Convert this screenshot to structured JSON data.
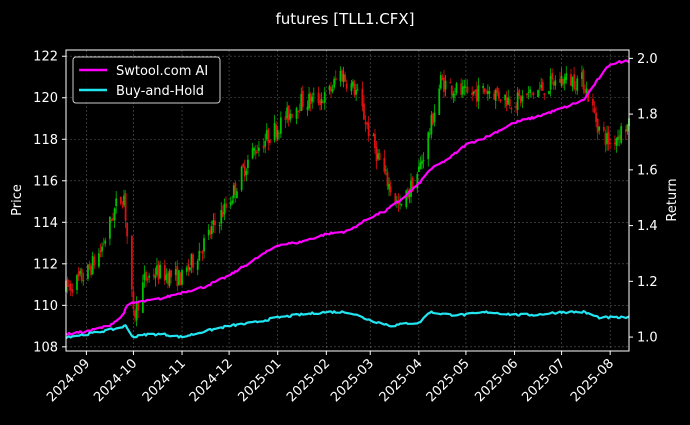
{
  "colors": {
    "background": "#000000",
    "up_candle": "#00c000",
    "down_candle": "#e01010",
    "ai_line": "#ff00ff",
    "bh_line": "#22e5f2",
    "grid": "#ffffff",
    "text": "#ffffff"
  },
  "chart_data": {
    "type": "line",
    "title": "futures [TLL1.CFX]",
    "ylabel_left": "Price",
    "ylabel_right": "Return",
    "ylim_left": [
      107.8,
      122.3
    ],
    "ylim_right": [
      0.95,
      2.03
    ],
    "yticks_left": [
      108,
      110,
      112,
      114,
      116,
      118,
      120,
      122
    ],
    "yticks_right": [
      1.0,
      1.2,
      1.4,
      1.6,
      1.8,
      2.0
    ],
    "ytick_labels_left": [
      "108",
      "110",
      "112",
      "114",
      "116",
      "118",
      "120",
      "122"
    ],
    "ytick_labels_right": [
      "1.0",
      "1.2",
      "1.4",
      "1.6",
      "1.8",
      "2.0"
    ],
    "xlim": [
      "2024-08-19",
      "2025-08-13"
    ],
    "xticks": [
      "2024-09-01",
      "2024-10-01",
      "2024-11-01",
      "2024-12-01",
      "2025-01-01",
      "2025-02-01",
      "2025-03-01",
      "2025-04-01",
      "2025-05-01",
      "2025-06-01",
      "2025-07-01",
      "2025-08-01"
    ],
    "xtick_labels": [
      "2024-09",
      "2024-10",
      "2024-11",
      "2024-12",
      "2025-01",
      "2025-02",
      "2025-03",
      "2025-04",
      "2025-05",
      "2025-06",
      "2025-07",
      "2025-08"
    ],
    "grid": true,
    "legend_position": "top-left",
    "series": [
      {
        "name": "Swtool.com AI",
        "axis": "right",
        "color": "#ff00ff",
        "points": [
          [
            "2024-08-19",
            1.01
          ],
          [
            "2024-09-01",
            1.02
          ],
          [
            "2024-09-15",
            1.04
          ],
          [
            "2024-09-23",
            1.07
          ],
          [
            "2024-09-28",
            1.12
          ],
          [
            "2024-10-10",
            1.13
          ],
          [
            "2024-10-20",
            1.14
          ],
          [
            "2024-11-01",
            1.16
          ],
          [
            "2024-11-15",
            1.18
          ],
          [
            "2024-12-01",
            1.22
          ],
          [
            "2024-12-15",
            1.27
          ],
          [
            "2025-01-01",
            1.33
          ],
          [
            "2025-01-15",
            1.34
          ],
          [
            "2025-02-01",
            1.37
          ],
          [
            "2025-02-15",
            1.38
          ],
          [
            "2025-03-01",
            1.43
          ],
          [
            "2025-03-10",
            1.45
          ],
          [
            "2025-03-20",
            1.49
          ],
          [
            "2025-04-01",
            1.55
          ],
          [
            "2025-04-08",
            1.6
          ],
          [
            "2025-04-20",
            1.64
          ],
          [
            "2025-05-01",
            1.69
          ],
          [
            "2025-05-15",
            1.72
          ],
          [
            "2025-06-01",
            1.77
          ],
          [
            "2025-06-15",
            1.79
          ],
          [
            "2025-07-01",
            1.82
          ],
          [
            "2025-07-15",
            1.85
          ],
          [
            "2025-07-25",
            1.93
          ],
          [
            "2025-08-01",
            1.98
          ],
          [
            "2025-08-10",
            1.99
          ]
        ]
      },
      {
        "name": "Buy-and-Hold",
        "axis": "right",
        "color": "#22e5f2",
        "points": [
          [
            "2024-08-19",
            1.0
          ],
          [
            "2024-09-01",
            1.01
          ],
          [
            "2024-09-20",
            1.03
          ],
          [
            "2024-09-26",
            1.04
          ],
          [
            "2024-10-01",
            1.0
          ],
          [
            "2024-10-10",
            1.01
          ],
          [
            "2024-10-20",
            1.01
          ],
          [
            "2024-11-01",
            1.0
          ],
          [
            "2024-11-15",
            1.02
          ],
          [
            "2024-12-01",
            1.04
          ],
          [
            "2024-12-15",
            1.05
          ],
          [
            "2025-01-01",
            1.07
          ],
          [
            "2025-01-15",
            1.08
          ],
          [
            "2025-02-01",
            1.09
          ],
          [
            "2025-02-15",
            1.09
          ],
          [
            "2025-03-01",
            1.06
          ],
          [
            "2025-03-15",
            1.04
          ],
          [
            "2025-03-25",
            1.05
          ],
          [
            "2025-04-01",
            1.05
          ],
          [
            "2025-04-08",
            1.09
          ],
          [
            "2025-04-20",
            1.08
          ],
          [
            "2025-05-01",
            1.08
          ],
          [
            "2025-05-15",
            1.09
          ],
          [
            "2025-06-01",
            1.08
          ],
          [
            "2025-06-15",
            1.08
          ],
          [
            "2025-07-01",
            1.09
          ],
          [
            "2025-07-15",
            1.09
          ],
          [
            "2025-07-25",
            1.07
          ],
          [
            "2025-08-01",
            1.07
          ],
          [
            "2025-08-10",
            1.07
          ]
        ]
      }
    ],
    "price_path": [
      [
        "2024-08-19",
        110.8
      ],
      [
        "2024-09-01",
        111.5
      ],
      [
        "2024-09-10",
        112.6
      ],
      [
        "2024-09-20",
        114.8
      ],
      [
        "2024-09-25",
        115.3
      ],
      [
        "2024-10-01",
        109.4
      ],
      [
        "2024-10-08",
        111.2
      ],
      [
        "2024-10-15",
        111.6
      ],
      [
        "2024-11-01",
        111.3
      ],
      [
        "2024-11-15",
        113.0
      ],
      [
        "2024-12-01",
        115.0
      ],
      [
        "2024-12-15",
        117.3
      ],
      [
        "2025-01-01",
        118.6
      ],
      [
        "2025-01-15",
        119.8
      ],
      [
        "2025-02-01",
        120.0
      ],
      [
        "2025-02-10",
        121.2
      ],
      [
        "2025-02-20",
        120.3
      ],
      [
        "2025-03-01",
        118.2
      ],
      [
        "2025-03-10",
        116.3
      ],
      [
        "2025-03-20",
        114.6
      ],
      [
        "2025-04-01",
        116.5
      ],
      [
        "2025-04-08",
        118.4
      ],
      [
        "2025-04-15",
        120.8
      ],
      [
        "2025-05-01",
        120.1
      ],
      [
        "2025-05-15",
        120.4
      ],
      [
        "2025-06-01",
        119.8
      ],
      [
        "2025-06-15",
        120.3
      ],
      [
        "2025-07-01",
        120.9
      ],
      [
        "2025-07-15",
        120.8
      ],
      [
        "2025-07-25",
        118.5
      ],
      [
        "2025-08-01",
        117.8
      ],
      [
        "2025-08-10",
        118.6
      ]
    ]
  }
}
